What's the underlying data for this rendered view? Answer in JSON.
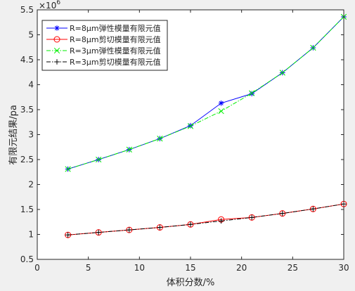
{
  "chart_data": {
    "type": "line",
    "title": "",
    "xlabel": "体积分数/%",
    "ylabel": "有限元结果/pa",
    "y_exponent_label": "×10",
    "y_exponent_power": "6",
    "xlim": [
      0,
      30
    ],
    "ylim": [
      0.5,
      5.5
    ],
    "x_ticks": [
      0,
      5,
      10,
      15,
      20,
      25,
      30
    ],
    "y_ticks": [
      0.5,
      1,
      1.5,
      2,
      2.5,
      3,
      3.5,
      4,
      4.5,
      5,
      5.5
    ],
    "x_tick_labels": [
      "0",
      "5",
      "10",
      "15",
      "20",
      "25",
      "30"
    ],
    "y_tick_labels": [
      "0.5",
      "1",
      "1.5",
      "2",
      "2.5",
      "3",
      "3.5",
      "4",
      "4.5",
      "5",
      "5.5"
    ],
    "grid": false,
    "legend_position": "top-left",
    "x": [
      3,
      6,
      9,
      12,
      15,
      18,
      21,
      24,
      27,
      30
    ],
    "series": [
      {
        "name": "R=8μm弹性模量有限元值",
        "color": "#0000ff",
        "dash": "solid",
        "marker": "star",
        "values": [
          2.31,
          2.5,
          2.7,
          2.92,
          3.18,
          3.63,
          3.82,
          4.24,
          4.74,
          5.36
        ]
      },
      {
        "name": "R=8μm剪切模量有限元值",
        "color": "#ff0000",
        "dash": "solid",
        "marker": "circle",
        "values": [
          0.99,
          1.04,
          1.09,
          1.14,
          1.2,
          1.3,
          1.34,
          1.42,
          1.51,
          1.61
        ]
      },
      {
        "name": "R=3μm弹性模量有限元值",
        "color": "#00ee00",
        "dash": "dashdot",
        "marker": "x",
        "values": [
          2.31,
          2.5,
          2.7,
          2.92,
          3.17,
          3.47,
          3.83,
          4.24,
          4.74,
          5.36
        ]
      },
      {
        "name": "R=3μm剪切模量有限元值",
        "color": "#000000",
        "dash": "dashdot",
        "marker": "plus",
        "values": [
          0.99,
          1.04,
          1.09,
          1.14,
          1.2,
          1.27,
          1.34,
          1.42,
          1.51,
          1.61
        ]
      }
    ]
  }
}
